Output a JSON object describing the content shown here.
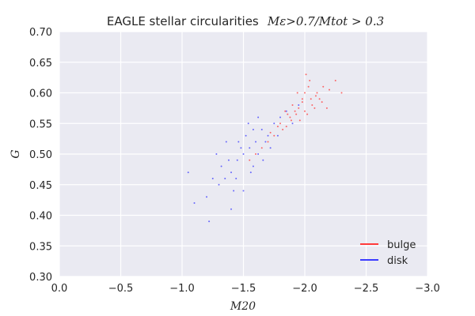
{
  "colors": {
    "background": "#eaeaf2",
    "grid": "#ffffff",
    "bulge": "#ff3b3b",
    "disk": "#3b3bff"
  },
  "chart_data": {
    "type": "scatter",
    "title": "EAGLE stellar circularities",
    "title_math": "Mε>0.7/Mtot > 0.3",
    "xlabel": "M20",
    "ylabel": "G",
    "xlim": [
      0.0,
      -3.0
    ],
    "ylim": [
      0.3,
      0.7
    ],
    "x_ticks": [
      "0.0",
      "−0.5",
      "−1.0",
      "−1.5",
      "−2.0",
      "−2.5",
      "−3.0"
    ],
    "y_ticks": [
      "0.30",
      "0.35",
      "0.40",
      "0.45",
      "0.50",
      "0.55",
      "0.60",
      "0.65",
      "0.70"
    ],
    "x_tick_values": [
      0.0,
      -0.5,
      -1.0,
      -1.5,
      -2.0,
      -2.5,
      -3.0
    ],
    "y_tick_values": [
      0.3,
      0.35,
      0.4,
      0.45,
      0.5,
      0.55,
      0.6,
      0.65,
      0.7
    ],
    "grid": true,
    "legend_position": "bottom-right",
    "series": [
      {
        "name": "bulge",
        "color": "#ff3b3b",
        "points": [
          [
            -1.95,
            0.575
          ],
          [
            -2.05,
            0.59
          ],
          [
            -1.88,
            0.56
          ],
          [
            -2.1,
            0.6
          ],
          [
            -1.98,
            0.585
          ],
          [
            -1.85,
            0.545
          ],
          [
            -2.02,
            0.565
          ],
          [
            -1.92,
            0.57
          ],
          [
            -2.15,
            0.61
          ],
          [
            -1.8,
            0.55
          ],
          [
            -2.0,
            0.6
          ],
          [
            -1.9,
            0.58
          ],
          [
            -2.08,
            0.575
          ],
          [
            -1.75,
            0.53
          ],
          [
            -2.2,
            0.605
          ],
          [
            -1.96,
            0.555
          ],
          [
            -2.04,
            0.62
          ],
          [
            -1.86,
            0.565
          ],
          [
            -1.7,
            0.52
          ],
          [
            -2.12,
            0.59
          ],
          [
            -1.94,
            0.6
          ],
          [
            -2.06,
            0.58
          ],
          [
            -1.82,
            0.54
          ],
          [
            -2.0,
            0.57
          ],
          [
            -1.65,
            0.51
          ],
          [
            -2.25,
            0.62
          ],
          [
            -1.98,
            0.59
          ],
          [
            -1.89,
            0.555
          ],
          [
            -2.03,
            0.61
          ],
          [
            -1.78,
            0.545
          ],
          [
            -2.18,
            0.575
          ],
          [
            -1.6,
            0.5
          ],
          [
            -2.3,
            0.6
          ],
          [
            -1.93,
            0.565
          ],
          [
            -2.09,
            0.595
          ],
          [
            -1.55,
            0.49
          ],
          [
            -2.01,
            0.63
          ],
          [
            -1.84,
            0.57
          ],
          [
            -2.14,
            0.585
          ],
          [
            -1.72,
            0.535
          ]
        ]
      },
      {
        "name": "disk",
        "color": "#3b3bff",
        "points": [
          [
            -1.45,
            0.49
          ],
          [
            -1.55,
            0.51
          ],
          [
            -1.6,
            0.52
          ],
          [
            -1.4,
            0.47
          ],
          [
            -1.7,
            0.53
          ],
          [
            -1.5,
            0.5
          ],
          [
            -1.35,
            0.46
          ],
          [
            -1.65,
            0.54
          ],
          [
            -1.58,
            0.48
          ],
          [
            -1.48,
            0.51
          ],
          [
            -1.75,
            0.55
          ],
          [
            -1.3,
            0.45
          ],
          [
            -1.62,
            0.5
          ],
          [
            -1.52,
            0.53
          ],
          [
            -1.42,
            0.44
          ],
          [
            -1.8,
            0.56
          ],
          [
            -1.25,
            0.46
          ],
          [
            -1.68,
            0.52
          ],
          [
            -1.38,
            0.49
          ],
          [
            -1.56,
            0.47
          ],
          [
            -1.2,
            0.43
          ],
          [
            -1.85,
            0.57
          ],
          [
            -1.46,
            0.52
          ],
          [
            -1.66,
            0.49
          ],
          [
            -1.32,
            0.48
          ],
          [
            -1.72,
            0.51
          ],
          [
            -1.54,
            0.55
          ],
          [
            -1.44,
            0.46
          ],
          [
            -1.1,
            0.42
          ],
          [
            -1.9,
            0.55
          ],
          [
            -1.28,
            0.5
          ],
          [
            -1.62,
            0.56
          ],
          [
            -1.5,
            0.44
          ],
          [
            -1.36,
            0.52
          ],
          [
            -1.78,
            0.53
          ],
          [
            -1.05,
            0.47
          ],
          [
            -1.95,
            0.58
          ],
          [
            -1.22,
            0.39
          ],
          [
            -1.58,
            0.54
          ],
          [
            -1.4,
            0.41
          ]
        ]
      }
    ]
  }
}
